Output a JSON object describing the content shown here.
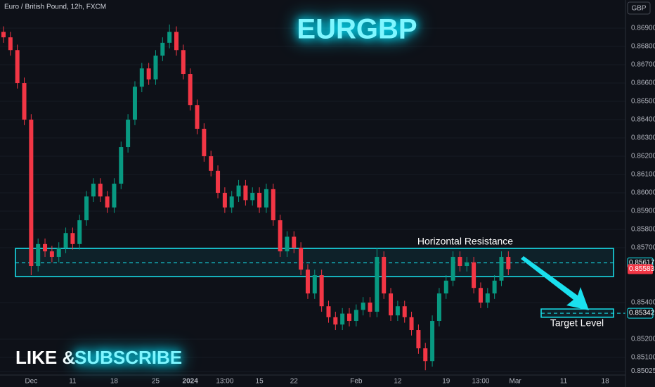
{
  "chart_data": {
    "type": "candlestick",
    "title": "EURGBP",
    "symbol_info": "Euro / British Pound, 12h, FXCM",
    "currency": "GBP",
    "promo": [
      "LIKE &",
      "SUBSCRIBE"
    ],
    "resistance_label": "Horizontal Resistance",
    "target_label": "Target Level",
    "up_color": "#089981",
    "down_color": "#f23645",
    "accent_color": "#18e6f0",
    "ylim": [
      0.84977,
      0.87054
    ],
    "yticks": [
      {
        "value": 0.869,
        "label": "0.86900"
      },
      {
        "value": 0.868,
        "label": "0.86800"
      },
      {
        "value": 0.867,
        "label": "0.86700"
      },
      {
        "value": 0.866,
        "label": "0.86600"
      },
      {
        "value": 0.865,
        "label": "0.86500"
      },
      {
        "value": 0.864,
        "label": "0.86400"
      },
      {
        "value": 0.863,
        "label": "0.86300"
      },
      {
        "value": 0.862,
        "label": "0.86200"
      },
      {
        "value": 0.861,
        "label": "0.86100"
      },
      {
        "value": 0.86,
        "label": "0.86000"
      },
      {
        "value": 0.859,
        "label": "0.85900"
      },
      {
        "value": 0.858,
        "label": "0.85800"
      },
      {
        "value": 0.857,
        "label": "0.85700"
      },
      {
        "value": 0.854,
        "label": "0.85400"
      },
      {
        "value": 0.852,
        "label": "0.85200"
      },
      {
        "value": 0.851,
        "label": "0.85100"
      },
      {
        "value": 0.85025,
        "label": "0.85025"
      }
    ],
    "resistance_zone": [
      0.85542,
      0.85696
    ],
    "resistance_level": {
      "value": 0.85617,
      "label": "0.85617"
    },
    "current_price": {
      "value": 0.85583,
      "label": "0.85583"
    },
    "target_zone": [
      0.8532,
      0.85365
    ],
    "target_price": {
      "value": 0.85342,
      "label": "0.85342"
    },
    "categories": [
      null,
      null,
      null,
      null,
      "Dec",
      null,
      null,
      null,
      null,
      null,
      "11",
      null,
      null,
      null,
      null,
      null,
      "18",
      null,
      null,
      null,
      null,
      null,
      "25",
      null,
      null,
      null,
      null,
      "2024",
      null,
      null,
      null,
      null,
      "13:00",
      null,
      null,
      null,
      null,
      "15",
      null,
      null,
      null,
      null,
      "22",
      null,
      null,
      null,
      null,
      null,
      null,
      null,
      null,
      "Feb",
      null,
      null,
      null,
      null,
      null,
      "12",
      null,
      null,
      null,
      null,
      null,
      null,
      "19",
      null,
      null,
      null,
      null,
      "13:00",
      null,
      null,
      null,
      null,
      "Mar",
      null,
      null,
      null,
      null,
      null,
      null,
      "11",
      null,
      null,
      null,
      null,
      null,
      "18"
    ],
    "open": [
      0.8688,
      0.8685,
      0.8678,
      0.866,
      0.864,
      0.856,
      0.8572,
      0.8568,
      0.8565,
      0.857,
      0.8578,
      0.8572,
      0.8585,
      0.8598,
      0.8605,
      0.8598,
      0.8592,
      0.8605,
      0.8625,
      0.864,
      0.8658,
      0.8668,
      0.8662,
      0.8675,
      0.8682,
      0.8688,
      0.8678,
      0.8665,
      0.8648,
      0.8635,
      0.862,
      0.8612,
      0.86,
      0.8592,
      0.8598,
      0.8604,
      0.8596,
      0.86,
      0.8592,
      0.8602,
      0.8585,
      0.8568,
      0.8576,
      0.857,
      0.8558,
      0.8545,
      0.8555,
      0.8538,
      0.8532,
      0.8528,
      0.8534,
      0.853,
      0.8536,
      0.854,
      0.8535,
      0.8565,
      0.8545,
      0.8533,
      0.8538,
      0.8532,
      0.8525,
      0.8515,
      0.8508,
      0.853,
      0.8545,
      0.8552,
      0.8565,
      0.856,
      0.8562,
      0.8548,
      0.854,
      0.8545,
      0.8552,
      0.8565,
      null,
      null,
      null,
      null,
      null,
      null,
      null,
      null,
      null,
      null,
      null,
      null,
      null,
      null
    ],
    "high": [
      0.8691,
      0.8688,
      0.8681,
      0.8663,
      0.8643,
      0.8575,
      0.8575,
      0.8571,
      0.8573,
      0.8581,
      0.8581,
      0.8588,
      0.8601,
      0.8608,
      0.8608,
      0.8601,
      0.8608,
      0.8628,
      0.8643,
      0.8661,
      0.8671,
      0.8671,
      0.8678,
      0.8685,
      0.8692,
      0.8691,
      0.8681,
      0.8668,
      0.8651,
      0.8638,
      0.8623,
      0.8615,
      0.8603,
      0.8601,
      0.8607,
      0.8607,
      0.8603,
      0.8603,
      0.8605,
      0.8605,
      0.8588,
      0.8579,
      0.8579,
      0.8573,
      0.8561,
      0.8558,
      0.8558,
      0.8541,
      0.8535,
      0.8537,
      0.8537,
      0.8539,
      0.8543,
      0.8543,
      0.857,
      0.8568,
      0.8548,
      0.8541,
      0.8541,
      0.8535,
      0.8528,
      0.8518,
      0.8533,
      0.8548,
      0.8555,
      0.8568,
      0.8568,
      0.8565,
      0.8565,
      0.8551,
      0.8548,
      0.8555,
      0.8568,
      0.8568,
      null,
      null,
      null,
      null,
      null,
      null,
      null,
      null,
      null,
      null,
      null,
      null,
      null,
      null
    ],
    "low": [
      0.8682,
      0.8675,
      0.8657,
      0.8637,
      0.8555,
      0.8557,
      0.8565,
      0.8562,
      0.8562,
      0.8567,
      0.8569,
      0.8569,
      0.8582,
      0.8595,
      0.8595,
      0.8589,
      0.8589,
      0.8602,
      0.8622,
      0.8637,
      0.8655,
      0.8659,
      0.8659,
      0.8672,
      0.8679,
      0.8675,
      0.8662,
      0.8645,
      0.8632,
      0.8617,
      0.8609,
      0.8597,
      0.8589,
      0.8589,
      0.8595,
      0.8593,
      0.8593,
      0.8589,
      0.8589,
      0.8582,
      0.8565,
      0.8565,
      0.8567,
      0.8555,
      0.8542,
      0.8542,
      0.8535,
      0.8529,
      0.8525,
      0.8525,
      0.8527,
      0.8527,
      0.8533,
      0.8532,
      0.8532,
      0.8542,
      0.853,
      0.853,
      0.8529,
      0.8522,
      0.8512,
      0.8503,
      0.8505,
      0.8527,
      0.8542,
      0.8549,
      0.8557,
      0.8557,
      0.8545,
      0.8537,
      0.8537,
      0.8542,
      0.8549,
      0.8555,
      null,
      null,
      null,
      null,
      null,
      null,
      null,
      null,
      null,
      null,
      null,
      null,
      null,
      null
    ],
    "close": [
      0.8685,
      0.8678,
      0.866,
      0.864,
      0.856,
      0.8572,
      0.8568,
      0.8565,
      0.857,
      0.8578,
      0.8572,
      0.8585,
      0.8598,
      0.8605,
      0.8598,
      0.8592,
      0.8605,
      0.8625,
      0.864,
      0.8658,
      0.8668,
      0.8662,
      0.8675,
      0.8682,
      0.8688,
      0.8678,
      0.8665,
      0.8648,
      0.8635,
      0.862,
      0.8612,
      0.86,
      0.8592,
      0.8598,
      0.8604,
      0.8596,
      0.86,
      0.8592,
      0.8602,
      0.8585,
      0.8568,
      0.8576,
      0.857,
      0.8558,
      0.8545,
      0.8555,
      0.8538,
      0.8532,
      0.8528,
      0.8534,
      0.853,
      0.8536,
      0.854,
      0.8535,
      0.8565,
      0.8545,
      0.8533,
      0.8538,
      0.8532,
      0.8525,
      0.8515,
      0.8508,
      0.853,
      0.8545,
      0.8552,
      0.8565,
      0.856,
      0.8562,
      0.8548,
      0.854,
      0.8545,
      0.8552,
      0.8565,
      0.85583,
      null,
      null,
      null,
      null,
      null,
      null,
      null,
      null,
      null,
      null,
      null,
      null,
      null,
      null
    ]
  }
}
